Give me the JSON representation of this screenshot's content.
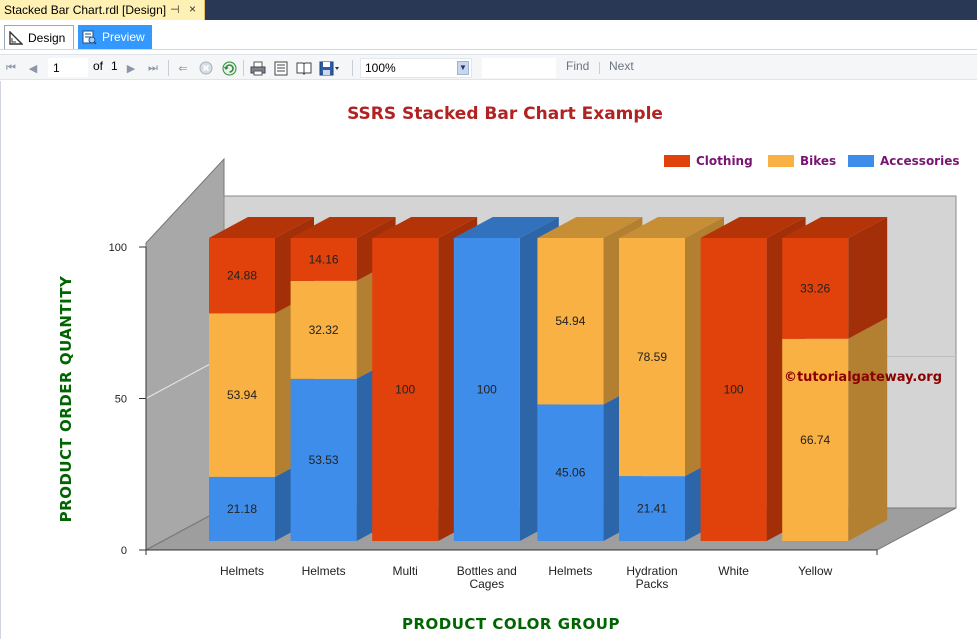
{
  "document_tab": {
    "title": "Stacked Bar Chart.rdl [Design]",
    "pin_icon": "pin-icon",
    "close_icon": "close-icon"
  },
  "view_tabs": [
    {
      "label": "Design",
      "icon": "design-ruler-icon",
      "selected": false
    },
    {
      "label": "Preview",
      "icon": "preview-report-icon",
      "selected": true
    }
  ],
  "toolbar": {
    "page_number": "1",
    "of_label": "of",
    "page_total": "1",
    "zoom": "100%",
    "find_label": "Find",
    "next_label": "Next",
    "icons": [
      "first-page-icon",
      "previous-page-icon",
      "next-page-icon",
      "last-page-icon",
      "back-icon",
      "stop-icon",
      "refresh-icon",
      "print-icon",
      "print-layout-icon",
      "page-setup-icon",
      "export-icon"
    ]
  },
  "colors": {
    "clothing": "#e1410a",
    "bikes": "#f8b142",
    "accessories": "#3e8dea",
    "title": "#b22222",
    "axis_title": "#006400",
    "legend_text": "#7a1472",
    "watermark": "#8b0000"
  },
  "chart_data": {
    "type": "bar",
    "stacked": true,
    "three_d": true,
    "title": "SSRS Stacked Bar Chart Example",
    "xlabel": "PRODUCT COLOR GROUP",
    "ylabel": "PRODUCT ORDER QUANTITY",
    "ylim": [
      0,
      100
    ],
    "yticks": [
      "0",
      "50",
      "100"
    ],
    "legend_position": "top-right",
    "categories": [
      "Helmets",
      "Helmets",
      "Multi",
      "Bottles and Cages",
      "Helmets",
      "Hydration Packs",
      "White",
      "Yellow"
    ],
    "series": [
      {
        "name": "Accessories",
        "color": "#3e8dea",
        "values": [
          21.18,
          53.53,
          0,
          100,
          45.06,
          21.41,
          0,
          0
        ]
      },
      {
        "name": "Bikes",
        "color": "#f8b142",
        "values": [
          53.94,
          32.32,
          0,
          0,
          54.94,
          78.59,
          0,
          66.74
        ]
      },
      {
        "name": "Clothing",
        "color": "#e1410a",
        "values": [
          24.88,
          14.16,
          100,
          0,
          0,
          0,
          100,
          33.26
        ]
      }
    ],
    "legend": [
      "Clothing",
      "Bikes",
      "Accessories"
    ],
    "annotation": "©tutorialgateway.org"
  }
}
